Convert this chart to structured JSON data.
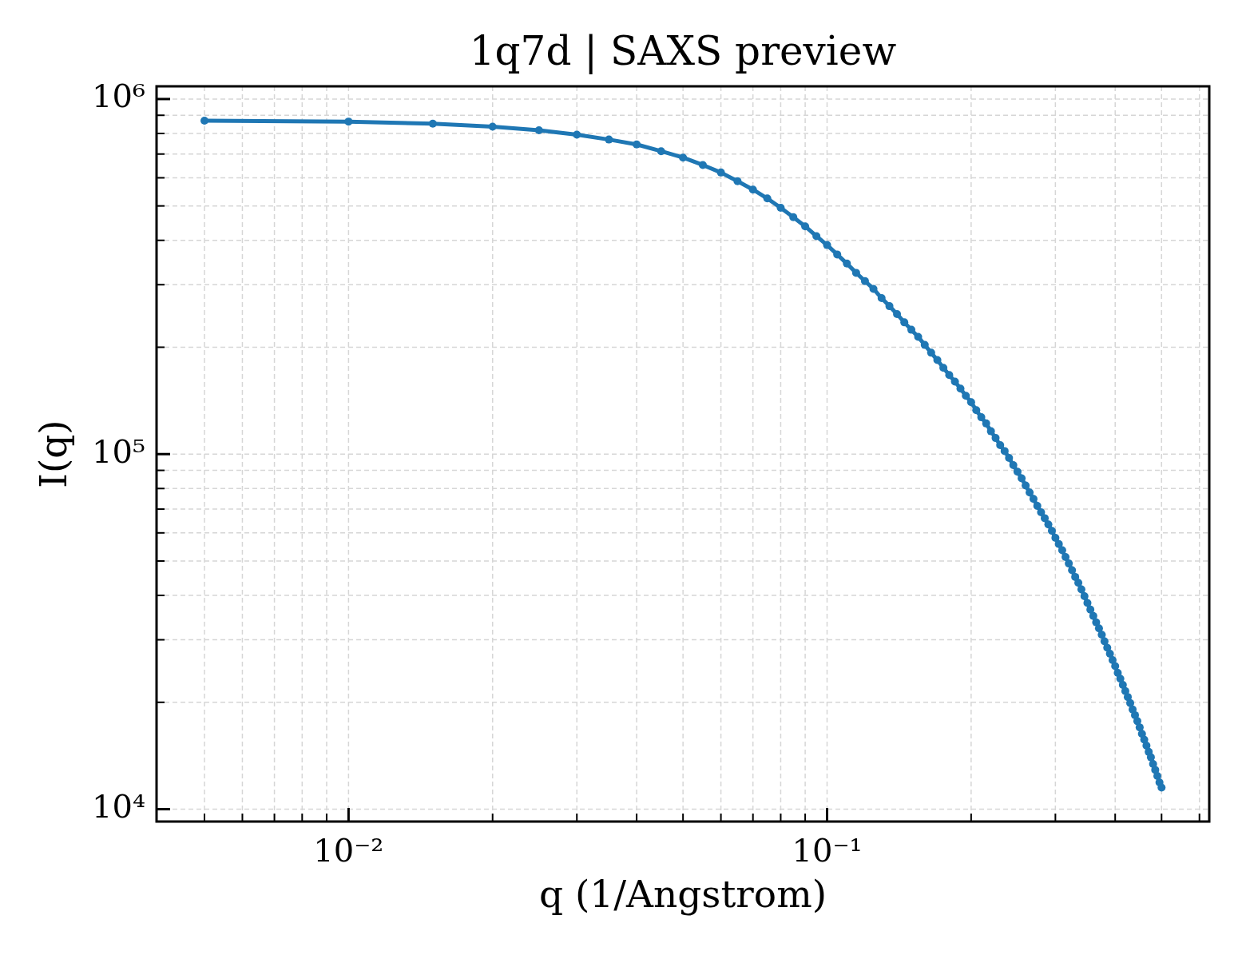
{
  "chart_data": {
    "type": "line",
    "title": "1q7d | SAXS preview",
    "xlabel": "q (1/Angstrom)",
    "ylabel": "I(q)",
    "x": [
      0.005,
      0.01,
      0.015,
      0.02,
      0.025,
      0.03,
      0.035,
      0.04,
      0.045,
      0.05,
      0.055,
      0.06,
      0.065,
      0.07,
      0.075,
      0.08,
      0.085,
      0.09,
      0.095,
      0.1,
      0.105,
      0.11,
      0.115,
      0.12,
      0.125,
      0.13,
      0.135,
      0.14,
      0.145,
      0.15,
      0.155,
      0.16,
      0.165,
      0.17,
      0.175,
      0.18,
      0.185,
      0.19,
      0.195,
      0.2,
      0.205,
      0.21,
      0.215,
      0.22,
      0.225,
      0.23,
      0.235,
      0.24,
      0.245,
      0.25,
      0.255,
      0.26,
      0.265,
      0.27,
      0.275,
      0.28,
      0.285,
      0.29,
      0.295,
      0.3,
      0.305,
      0.31,
      0.315,
      0.32,
      0.325,
      0.33,
      0.335,
      0.34,
      0.345,
      0.35,
      0.355,
      0.36,
      0.365,
      0.37,
      0.375,
      0.38,
      0.385,
      0.39,
      0.395,
      0.4,
      0.405,
      0.41,
      0.415,
      0.42,
      0.425,
      0.43,
      0.435,
      0.44,
      0.445,
      0.45,
      0.455,
      0.46,
      0.465,
      0.47,
      0.475,
      0.48,
      0.485,
      0.49,
      0.495,
      0.5
    ],
    "series": [
      {
        "color": "#1f77b4",
        "values": [
          869000,
          864000,
          852000,
          836000,
          817000,
          794000,
          769000,
          745000,
          713000,
          684000,
          652000,
          621000,
          587000,
          556000,
          525000,
          494000,
          465000,
          438000,
          411000,
          388000,
          365000,
          344000,
          324000,
          307000,
          292000,
          275000,
          261000,
          248000,
          235000,
          224000,
          214000,
          203000,
          193000,
          184000,
          175000,
          167000,
          160000,
          153000,
          146000,
          140000,
          133000,
          127000,
          122000,
          116000,
          111000,
          106000,
          102000,
          97600,
          93100,
          89200,
          85500,
          81600,
          78000,
          74800,
          71500,
          68600,
          66000,
          63400,
          60800,
          58100,
          55800,
          53600,
          51300,
          49200,
          47100,
          45100,
          43400,
          41600,
          39800,
          38100,
          36500,
          35000,
          33600,
          32300,
          31000,
          29700,
          28500,
          27400,
          26300,
          25300,
          24200,
          23300,
          22400,
          21500,
          20700,
          19900,
          19100,
          18400,
          17700,
          17000,
          16300,
          15700,
          15100,
          14500,
          14000,
          13400,
          12900,
          12400,
          11900,
          11500
        ]
      }
    ],
    "log": "xy",
    "xlim": [
      0.00397,
      0.629
    ],
    "ylim": [
      9230,
      1086000
    ],
    "xticks": [
      {
        "value": 0.005,
        "label": null
      },
      {
        "value": 0.006,
        "label": null
      },
      {
        "value": 0.007,
        "label": null
      },
      {
        "value": 0.008,
        "label": null
      },
      {
        "value": 0.009,
        "label": null
      },
      {
        "value": 0.01,
        "label": "10⁻²"
      },
      {
        "value": 0.02,
        "label": null
      },
      {
        "value": 0.03,
        "label": null
      },
      {
        "value": 0.04,
        "label": null
      },
      {
        "value": 0.05,
        "label": null
      },
      {
        "value": 0.06,
        "label": null
      },
      {
        "value": 0.07,
        "label": null
      },
      {
        "value": 0.08,
        "label": null
      },
      {
        "value": 0.09,
        "label": null
      },
      {
        "value": 0.1,
        "label": "10⁻¹"
      },
      {
        "value": 0.2,
        "label": null
      },
      {
        "value": 0.3,
        "label": null
      },
      {
        "value": 0.4,
        "label": null
      },
      {
        "value": 0.5,
        "label": null
      },
      {
        "value": 0.6,
        "label": null
      }
    ],
    "yticks": [
      {
        "value": 10000,
        "label": "10⁴"
      },
      {
        "value": 20000,
        "label": null
      },
      {
        "value": 30000,
        "label": null
      },
      {
        "value": 40000,
        "label": null
      },
      {
        "value": 50000,
        "label": null
      },
      {
        "value": 60000,
        "label": null
      },
      {
        "value": 70000,
        "label": null
      },
      {
        "value": 80000,
        "label": null
      },
      {
        "value": 90000,
        "label": null
      },
      {
        "value": 100000,
        "label": "10⁵"
      },
      {
        "value": 200000,
        "label": null
      },
      {
        "value": 300000,
        "label": null
      },
      {
        "value": 400000,
        "label": null
      },
      {
        "value": 500000,
        "label": null
      },
      {
        "value": 600000,
        "label": null
      },
      {
        "value": 700000,
        "label": null
      },
      {
        "value": 800000,
        "label": null
      },
      {
        "value": 900000,
        "label": null
      },
      {
        "value": 1000000,
        "label": "10⁶"
      }
    ],
    "grid": true,
    "marker": "circle",
    "line_style": "solid"
  }
}
